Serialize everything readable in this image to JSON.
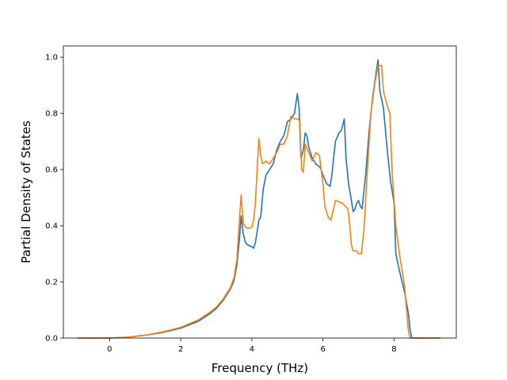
{
  "chart_data": {
    "type": "line",
    "title": "",
    "xlabel": "Frequency (THz)",
    "ylabel": "Partial Density of States",
    "xlim": [
      -1.3,
      9.75
    ],
    "ylim": [
      0.0,
      1.04
    ],
    "x_ticks": [
      0,
      2,
      4,
      6,
      8
    ],
    "y_ticks": [
      0.0,
      0.2,
      0.4,
      0.6,
      0.8,
      1.0
    ],
    "x_tick_labels": [
      "0",
      "2",
      "4",
      "6",
      "8"
    ],
    "y_tick_labels": [
      "0.0",
      "0.2",
      "0.4",
      "0.6",
      "0.8",
      "1.0"
    ],
    "grid": false,
    "legend": "none",
    "series": [
      {
        "color": "#1f77b4",
        "points": [
          [
            -0.9,
            0.0
          ],
          [
            0.0,
            0.0
          ],
          [
            0.5,
            0.003
          ],
          [
            1.0,
            0.01
          ],
          [
            1.5,
            0.02
          ],
          [
            2.0,
            0.035
          ],
          [
            2.5,
            0.06
          ],
          [
            2.8,
            0.085
          ],
          [
            3.0,
            0.105
          ],
          [
            3.2,
            0.135
          ],
          [
            3.4,
            0.175
          ],
          [
            3.5,
            0.205
          ],
          [
            3.58,
            0.26
          ],
          [
            3.65,
            0.35
          ],
          [
            3.7,
            0.435
          ],
          [
            3.76,
            0.37
          ],
          [
            3.82,
            0.34
          ],
          [
            3.9,
            0.33
          ],
          [
            4.0,
            0.325
          ],
          [
            4.05,
            0.32
          ],
          [
            4.1,
            0.34
          ],
          [
            4.2,
            0.42
          ],
          [
            4.25,
            0.43
          ],
          [
            4.32,
            0.53
          ],
          [
            4.4,
            0.58
          ],
          [
            4.5,
            0.6
          ],
          [
            4.6,
            0.62
          ],
          [
            4.7,
            0.67
          ],
          [
            4.8,
            0.7
          ],
          [
            4.9,
            0.72
          ],
          [
            5.0,
            0.77
          ],
          [
            5.1,
            0.78
          ],
          [
            5.2,
            0.8
          ],
          [
            5.28,
            0.87
          ],
          [
            5.33,
            0.82
          ],
          [
            5.38,
            0.64
          ],
          [
            5.45,
            0.67
          ],
          [
            5.5,
            0.73
          ],
          [
            5.55,
            0.72
          ],
          [
            5.6,
            0.68
          ],
          [
            5.7,
            0.64
          ],
          [
            5.8,
            0.62
          ],
          [
            5.9,
            0.61
          ],
          [
            5.95,
            0.6
          ],
          [
            6.0,
            0.58
          ],
          [
            6.1,
            0.55
          ],
          [
            6.2,
            0.54
          ],
          [
            6.25,
            0.58
          ],
          [
            6.35,
            0.7
          ],
          [
            6.45,
            0.73
          ],
          [
            6.52,
            0.74
          ],
          [
            6.6,
            0.78
          ],
          [
            6.65,
            0.64
          ],
          [
            6.72,
            0.55
          ],
          [
            6.8,
            0.49
          ],
          [
            6.85,
            0.45
          ],
          [
            6.9,
            0.46
          ],
          [
            6.95,
            0.48
          ],
          [
            7.0,
            0.49
          ],
          [
            7.05,
            0.47
          ],
          [
            7.1,
            0.46
          ],
          [
            7.2,
            0.58
          ],
          [
            7.3,
            0.74
          ],
          [
            7.4,
            0.86
          ],
          [
            7.5,
            0.95
          ],
          [
            7.55,
            0.99
          ],
          [
            7.6,
            0.88
          ],
          [
            7.7,
            0.82
          ],
          [
            7.8,
            0.68
          ],
          [
            7.9,
            0.56
          ],
          [
            8.0,
            0.48
          ],
          [
            8.05,
            0.3
          ],
          [
            8.15,
            0.24
          ],
          [
            8.3,
            0.16
          ],
          [
            8.4,
            0.09
          ],
          [
            8.45,
            0.03
          ],
          [
            8.5,
            0.0
          ],
          [
            9.3,
            0.0
          ]
        ]
      },
      {
        "color": "#ff7f0e",
        "points": [
          [
            -0.9,
            0.0
          ],
          [
            0.0,
            0.0
          ],
          [
            0.5,
            0.003
          ],
          [
            1.0,
            0.01
          ],
          [
            1.5,
            0.022
          ],
          [
            2.0,
            0.038
          ],
          [
            2.5,
            0.065
          ],
          [
            2.8,
            0.09
          ],
          [
            3.0,
            0.11
          ],
          [
            3.2,
            0.14
          ],
          [
            3.4,
            0.18
          ],
          [
            3.5,
            0.215
          ],
          [
            3.58,
            0.28
          ],
          [
            3.65,
            0.42
          ],
          [
            3.7,
            0.51
          ],
          [
            3.76,
            0.41
          ],
          [
            3.82,
            0.395
          ],
          [
            3.9,
            0.39
          ],
          [
            4.0,
            0.395
          ],
          [
            4.05,
            0.42
          ],
          [
            4.1,
            0.48
          ],
          [
            4.15,
            0.6
          ],
          [
            4.2,
            0.71
          ],
          [
            4.25,
            0.65
          ],
          [
            4.3,
            0.62
          ],
          [
            4.4,
            0.63
          ],
          [
            4.5,
            0.62
          ],
          [
            4.6,
            0.64
          ],
          [
            4.7,
            0.66
          ],
          [
            4.8,
            0.69
          ],
          [
            4.9,
            0.69
          ],
          [
            5.0,
            0.72
          ],
          [
            5.1,
            0.79
          ],
          [
            5.2,
            0.78
          ],
          [
            5.3,
            0.78
          ],
          [
            5.35,
            0.77
          ],
          [
            5.4,
            0.6
          ],
          [
            5.45,
            0.59
          ],
          [
            5.5,
            0.69
          ],
          [
            5.6,
            0.66
          ],
          [
            5.7,
            0.63
          ],
          [
            5.8,
            0.66
          ],
          [
            5.9,
            0.65
          ],
          [
            6.0,
            0.55
          ],
          [
            6.05,
            0.47
          ],
          [
            6.15,
            0.43
          ],
          [
            6.22,
            0.42
          ],
          [
            6.3,
            0.46
          ],
          [
            6.35,
            0.49
          ],
          [
            6.45,
            0.485
          ],
          [
            6.55,
            0.48
          ],
          [
            6.62,
            0.47
          ],
          [
            6.7,
            0.46
          ],
          [
            6.75,
            0.41
          ],
          [
            6.8,
            0.33
          ],
          [
            6.85,
            0.31
          ],
          [
            6.95,
            0.31
          ],
          [
            7.0,
            0.3
          ],
          [
            7.08,
            0.3
          ],
          [
            7.15,
            0.38
          ],
          [
            7.25,
            0.6
          ],
          [
            7.35,
            0.8
          ],
          [
            7.45,
            0.9
          ],
          [
            7.55,
            0.97
          ],
          [
            7.65,
            0.97
          ],
          [
            7.7,
            0.88
          ],
          [
            7.8,
            0.83
          ],
          [
            7.88,
            0.8
          ],
          [
            7.95,
            0.58
          ],
          [
            8.05,
            0.4
          ],
          [
            8.15,
            0.3
          ],
          [
            8.3,
            0.18
          ],
          [
            8.35,
            0.1
          ],
          [
            8.4,
            0.03
          ],
          [
            8.45,
            0.0
          ],
          [
            9.3,
            0.0
          ]
        ]
      }
    ]
  }
}
